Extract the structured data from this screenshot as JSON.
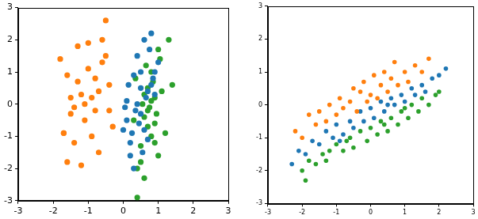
{
  "chart_data": [
    {
      "type": "scatter",
      "xlim": [
        -3,
        3
      ],
      "ylim": [
        -3,
        3
      ],
      "xticks": [
        -3,
        -2,
        -1,
        0,
        1,
        2,
        3
      ],
      "yticks": [
        -3,
        -2,
        -1,
        0,
        1,
        2,
        3
      ],
      "grid": false,
      "series": [
        {
          "color": "#ff7f0e",
          "x": [
            -1.8,
            -1.7,
            -1.6,
            -1.5,
            -1.4,
            -1.3,
            -1.2,
            -1.1,
            -1.0,
            -0.9,
            -0.8,
            -0.7,
            -0.6,
            -0.5,
            -0.4,
            -0.3,
            -1.5,
            -1.3,
            -1.1,
            -0.9,
            -0.7,
            -0.5,
            -1.6,
            -1.2,
            -1.0,
            -0.8,
            -0.6,
            -1.4,
            -0.4,
            -1.7
          ],
          "values": [
            1.4,
            -0.9,
            0.9,
            0.2,
            -1.2,
            1.8,
            0.3,
            -0.5,
            1.1,
            0.2,
            0.8,
            -1.5,
            1.3,
            2.6,
            0.6,
            -0.7,
            -0.3,
            0.7,
            0.0,
            -1.0,
            0.4,
            1.5,
            -1.8,
            -1.9,
            1.9,
            -0.2,
            2.0,
            -0.1,
            -0.2,
            -0.9
          ]
        },
        {
          "color": "#1f77b4",
          "x": [
            0.0,
            0.1,
            0.2,
            0.3,
            0.4,
            0.5,
            0.6,
            0.7,
            0.8,
            0.9,
            1.0,
            0.2,
            0.4,
            0.6,
            0.8,
            0.1,
            0.3,
            0.5,
            0.7,
            0.9,
            0.15,
            0.35,
            0.55,
            0.75,
            0.45,
            0.65,
            0.25,
            0.85,
            0.05,
            0.5
          ],
          "values": [
            -0.8,
            0.1,
            -1.2,
            0.9,
            1.5,
            -0.3,
            2.0,
            0.4,
            2.2,
            1.0,
            1.3,
            -1.6,
            0.0,
            -0.8,
            0.6,
            -0.5,
            -2.0,
            1.0,
            -1.1,
            0.3,
            0.6,
            -0.2,
            -1.5,
            1.7,
            -0.6,
            0.2,
            -0.9,
            0.8,
            -0.1,
            0.5
          ]
        },
        {
          "color": "#2ca02c",
          "x": [
            0.3,
            0.4,
            0.5,
            0.6,
            0.7,
            0.8,
            0.9,
            1.0,
            1.1,
            1.2,
            1.3,
            1.4,
            0.5,
            0.6,
            0.7,
            0.8,
            0.9,
            1.0,
            0.65,
            0.75,
            0.85,
            0.95,
            0.4,
            0.55,
            0.7,
            0.8,
            1.05,
            0.6,
            0.35,
            0.9
          ],
          "values": [
            -0.5,
            -2.9,
            -1.8,
            0.3,
            -0.2,
            1.0,
            -0.6,
            1.7,
            0.4,
            -0.9,
            2.0,
            0.6,
            -1.3,
            -0.4,
            0.5,
            -1.0,
            0.2,
            -1.6,
            1.2,
            -0.1,
            0.7,
            -0.3,
            -2.0,
            0.0,
            -0.7,
            0.1,
            1.4,
            -2.3,
            0.8,
            -1.2
          ]
        }
      ]
    },
    {
      "type": "scatter",
      "xlim": [
        -3,
        3
      ],
      "ylim": [
        -3,
        3
      ],
      "xticks": [
        -3,
        -2,
        -1,
        0,
        1,
        2,
        3
      ],
      "yticks": [
        -3,
        -2,
        -1,
        0,
        1,
        2,
        3
      ],
      "grid": false,
      "series": [
        {
          "color": "#ff7f0e",
          "x": [
            -2.2,
            -2.0,
            -1.8,
            -1.6,
            -1.5,
            -1.3,
            -1.2,
            -1.0,
            -0.9,
            -0.8,
            -0.6,
            -0.5,
            -0.4,
            -0.3,
            -0.2,
            -0.1,
            0.0,
            0.1,
            0.2,
            0.3,
            0.4,
            0.5,
            0.6,
            0.7,
            0.8,
            1.0,
            1.1,
            1.3,
            1.5,
            1.7
          ],
          "values": [
            -0.8,
            -1.0,
            -0.3,
            -0.6,
            -0.2,
            -0.5,
            0.0,
            -0.3,
            0.2,
            -0.1,
            0.1,
            0.5,
            -0.2,
            0.4,
            0.7,
            0.1,
            0.3,
            0.9,
            0.2,
            0.6,
            1.0,
            0.4,
            0.8,
            1.3,
            0.6,
            1.0,
            0.7,
            1.2,
            1.0,
            1.4
          ]
        },
        {
          "color": "#1f77b4",
          "x": [
            -2.3,
            -2.1,
            -1.9,
            -1.7,
            -1.5,
            -1.3,
            -1.1,
            -1.0,
            -0.8,
            -0.6,
            -0.5,
            -0.3,
            -0.2,
            0.0,
            0.1,
            0.3,
            0.4,
            0.6,
            0.7,
            0.9,
            1.0,
            1.2,
            1.3,
            1.5,
            1.6,
            1.8,
            2.0,
            2.2,
            -0.9,
            0.5
          ],
          "values": [
            -1.8,
            -1.4,
            -1.5,
            -1.1,
            -1.2,
            -0.8,
            -1.0,
            -0.6,
            -0.9,
            -0.5,
            -0.7,
            -0.2,
            -0.5,
            -0.1,
            -0.4,
            0.1,
            -0.2,
            0.2,
            0.0,
            0.3,
            0.1,
            0.5,
            0.3,
            0.6,
            0.4,
            0.8,
            0.9,
            1.1,
            -1.1,
            0.0
          ]
        },
        {
          "color": "#2ca02c",
          "x": [
            -2.0,
            -1.8,
            -1.6,
            -1.4,
            -1.2,
            -1.0,
            -0.8,
            -0.6,
            -0.5,
            -0.3,
            -0.1,
            0.0,
            0.2,
            0.3,
            0.5,
            0.6,
            0.8,
            0.9,
            1.1,
            1.2,
            1.4,
            1.5,
            1.7,
            1.9,
            2.0,
            -1.9,
            -0.7,
            0.4,
            1.0,
            -1.3
          ],
          "values": [
            -2.0,
            -1.7,
            -1.8,
            -1.5,
            -1.4,
            -1.2,
            -1.4,
            -1.0,
            -1.3,
            -0.8,
            -1.1,
            -0.7,
            -0.9,
            -0.5,
            -0.8,
            -0.4,
            -0.6,
            -0.2,
            -0.4,
            0.0,
            -0.2,
            0.2,
            0.0,
            0.3,
            0.4,
            -2.3,
            -1.1,
            -0.6,
            -0.1,
            -1.7
          ]
        }
      ]
    }
  ]
}
